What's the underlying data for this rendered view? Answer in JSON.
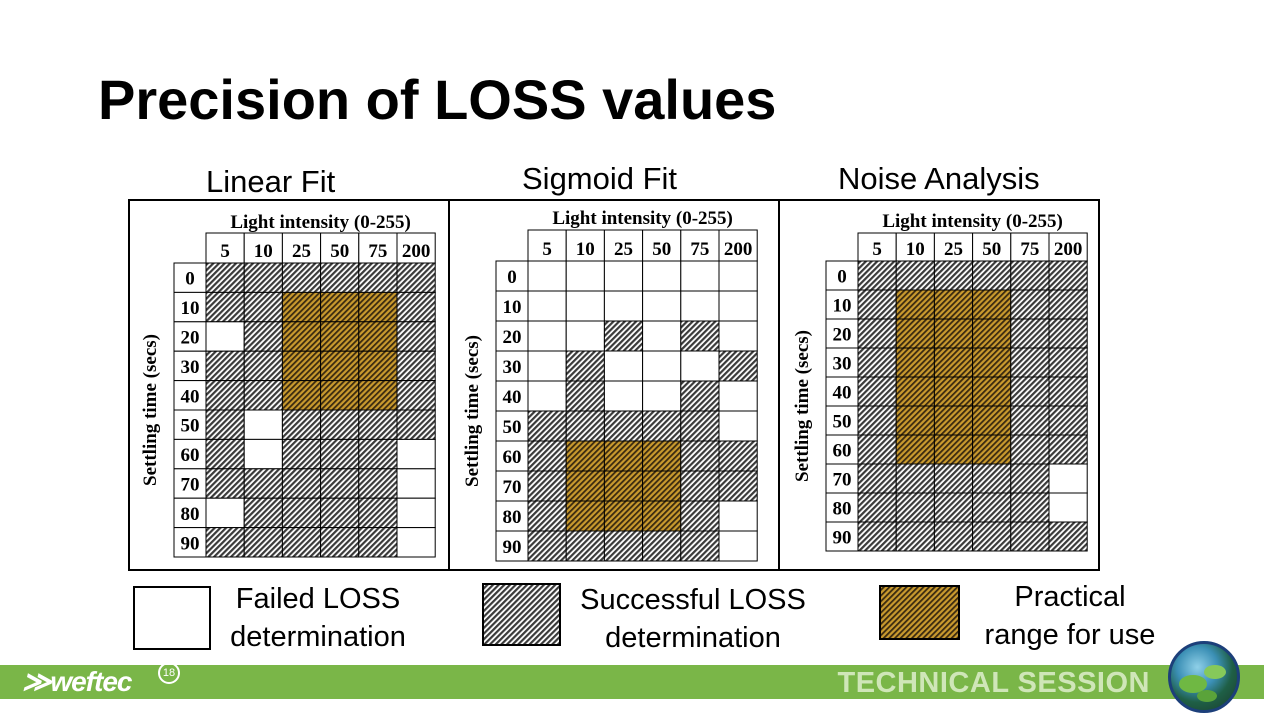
{
  "slide": {
    "title": "Precision of LOSS values"
  },
  "colors": {
    "failed": "#ffffff",
    "success": "#5a5a5a",
    "practical": "#c99a2e",
    "footer": "#7ab648"
  },
  "chart_data": [
    {
      "type": "heatmap",
      "title": "Linear Fit",
      "xlabel": "Light intensity (0-255)",
      "ylabel": "Settling time (secs)",
      "x": [
        "5",
        "10",
        "25",
        "50",
        "75",
        "200"
      ],
      "y": [
        "0",
        "10",
        "20",
        "30",
        "40",
        "50",
        "60",
        "70",
        "80",
        "90"
      ],
      "legend": [
        "Failed LOSS determination",
        "Successful LOSS determination",
        "Practical range for use"
      ],
      "values": [
        [
          1,
          1,
          1,
          1,
          1,
          1
        ],
        [
          1,
          1,
          2,
          2,
          2,
          1
        ],
        [
          0,
          1,
          2,
          2,
          2,
          1
        ],
        [
          1,
          1,
          2,
          2,
          2,
          1
        ],
        [
          1,
          1,
          2,
          2,
          2,
          1
        ],
        [
          1,
          0,
          1,
          1,
          1,
          1
        ],
        [
          1,
          0,
          1,
          1,
          1,
          0
        ],
        [
          1,
          1,
          1,
          1,
          1,
          0
        ],
        [
          0,
          1,
          1,
          1,
          1,
          0
        ],
        [
          1,
          1,
          1,
          1,
          1,
          0
        ]
      ]
    },
    {
      "type": "heatmap",
      "title": "Sigmoid Fit",
      "xlabel": "Light intensity (0-255)",
      "ylabel": "Settling time (secs)",
      "x": [
        "5",
        "10",
        "25",
        "50",
        "75",
        "200"
      ],
      "y": [
        "0",
        "10",
        "20",
        "30",
        "40",
        "50",
        "60",
        "70",
        "80",
        "90"
      ],
      "legend": [
        "Failed LOSS determination",
        "Successful LOSS determination",
        "Practical range for use"
      ],
      "values": [
        [
          0,
          0,
          0,
          0,
          0,
          0
        ],
        [
          0,
          0,
          0,
          0,
          0,
          0
        ],
        [
          0,
          0,
          1,
          0,
          1,
          0
        ],
        [
          0,
          1,
          0,
          0,
          0,
          1
        ],
        [
          0,
          1,
          0,
          0,
          1,
          0
        ],
        [
          1,
          1,
          1,
          1,
          1,
          0
        ],
        [
          1,
          2,
          2,
          2,
          1,
          1
        ],
        [
          1,
          2,
          2,
          2,
          1,
          1
        ],
        [
          1,
          2,
          2,
          2,
          1,
          0
        ],
        [
          1,
          1,
          1,
          1,
          1,
          0
        ]
      ]
    },
    {
      "type": "heatmap",
      "title": "Noise Analysis",
      "xlabel": "Light intensity (0-255)",
      "ylabel": "Settling time (secs)",
      "x": [
        "5",
        "10",
        "25",
        "50",
        "75",
        "200"
      ],
      "y": [
        "0",
        "10",
        "20",
        "30",
        "40",
        "50",
        "60",
        "70",
        "80",
        "90"
      ],
      "legend": [
        "Failed LOSS determination",
        "Successful LOSS determination",
        "Practical range for use"
      ],
      "values": [
        [
          1,
          1,
          1,
          1,
          1,
          1
        ],
        [
          1,
          2,
          2,
          2,
          1,
          1
        ],
        [
          1,
          2,
          2,
          2,
          1,
          1
        ],
        [
          1,
          2,
          2,
          2,
          1,
          1
        ],
        [
          1,
          2,
          2,
          2,
          1,
          1
        ],
        [
          1,
          2,
          2,
          2,
          1,
          1
        ],
        [
          1,
          2,
          2,
          2,
          1,
          1
        ],
        [
          1,
          1,
          1,
          1,
          1,
          0
        ],
        [
          1,
          1,
          1,
          1,
          1,
          0
        ],
        [
          1,
          1,
          1,
          1,
          1,
          1
        ]
      ]
    }
  ],
  "legend": {
    "failed": {
      "line1": "Failed LOSS",
      "line2": "determination"
    },
    "success": {
      "line1": "Successful LOSS",
      "line2": "determination"
    },
    "practical": {
      "line1": "Practical",
      "line2": "range for use"
    }
  },
  "footer": {
    "logo": "weftec",
    "logo_badge": "18",
    "session_label": "TECHNICAL SESSION",
    "logo_icon": "weftec-chevron-icon",
    "photo_icon": "lily-pad-photo-icon"
  }
}
